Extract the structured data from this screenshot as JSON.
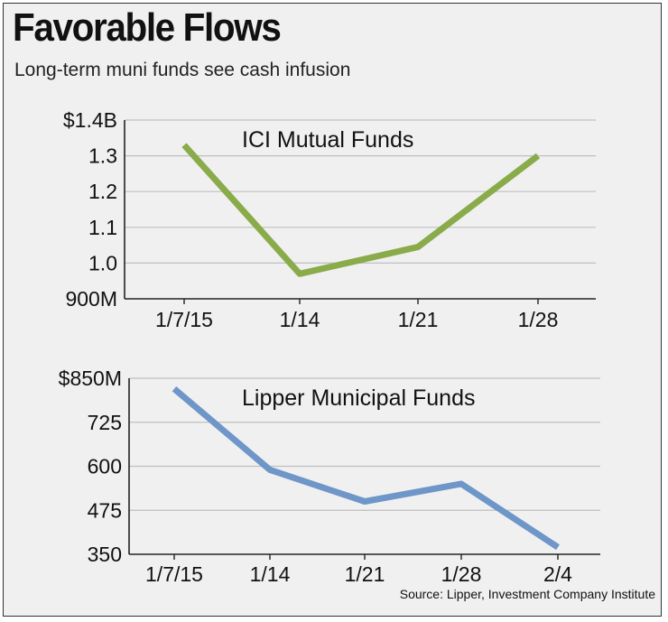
{
  "title": "Favorable Flows",
  "subtitle": "Long-term muni funds see cash infusion",
  "source": "Source: Lipper, Investment Company Institute",
  "colors": {
    "background": "#f0f0f0",
    "grid": "#bfbfbf",
    "axis": "#222222",
    "series_ici": "#8aab4a",
    "series_lipper": "#6e96c8"
  },
  "chart_data": [
    {
      "type": "line",
      "title": "ICI Mutual Funds",
      "categories": [
        "1/7/15",
        "1/14",
        "1/21",
        "1/28"
      ],
      "x_tick_labels": [
        "1/7/15",
        "1/14",
        "1/21",
        "1/28"
      ],
      "ylim": [
        0.9,
        1.4
      ],
      "yticks": [
        0.9,
        1.0,
        1.1,
        1.2,
        1.3,
        1.4
      ],
      "y_tick_labels": [
        "900M",
        "1.0",
        "1.1",
        "1.2",
        "1.3",
        "$1.4B"
      ],
      "series": [
        {
          "values": [
            1.33,
            0.97,
            1.045,
            1.3
          ]
        }
      ],
      "grid": true,
      "xlabel": "",
      "ylabel": ""
    },
    {
      "type": "line",
      "title": "Lipper Municipal Funds",
      "categories": [
        "1/7/15",
        "1/14",
        "1/21",
        "1/28",
        "2/4"
      ],
      "x_tick_labels": [
        "1/7/15",
        "1/14",
        "1/21",
        "1/28",
        "2/4"
      ],
      "ylim": [
        350,
        850
      ],
      "yticks": [
        350,
        475,
        600,
        725,
        850
      ],
      "y_tick_labels": [
        "350",
        "475",
        "600",
        "725",
        "$850M"
      ],
      "series": [
        {
          "values": [
            820,
            590,
            500,
            550,
            370
          ]
        }
      ],
      "grid": true,
      "xlabel": "",
      "ylabel": ""
    }
  ]
}
